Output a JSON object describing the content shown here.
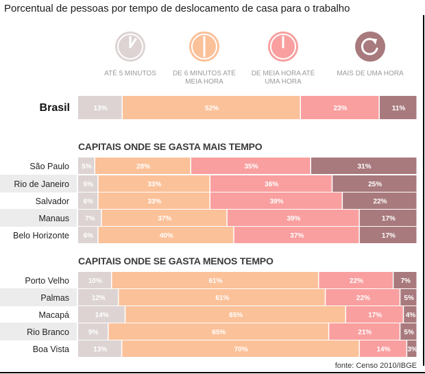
{
  "title": "Porcentual de pessoas por tempo de deslocamento de casa para o trabalho",
  "source": "fonte: Censo 2010/IBGE",
  "colors": {
    "ate5": "#ddd3d3",
    "ate30": "#fbc199",
    "ate60": "#f99f9f",
    "mais60": "#a87a7d",
    "row_alt": "#ececec",
    "bar_text": "#ffffff"
  },
  "legend": [
    {
      "label": "ATÉ 5 MINUTOS",
      "icon": "clock-5min-icon",
      "color": "#ddd3d3"
    },
    {
      "label": "DE 6 MINUTOS ATÉ MEIA HORA",
      "icon": "clock-half-hour-icon",
      "color": "#fbc199"
    },
    {
      "label": "DE MEIA HORA ATÉ UMA HORA",
      "icon": "clock-one-hour-icon",
      "color": "#f99f9f"
    },
    {
      "label": "MAIS DE UMA HORA",
      "icon": "clock-over-hour-icon",
      "color": "#a87a7d"
    }
  ],
  "chart_data": {
    "type": "bar",
    "orientation": "horizontal",
    "stacked": true,
    "series": [
      {
        "name": "ATÉ 5 MINUTOS"
      },
      {
        "name": "DE 6 MINUTOS ATÉ MEIA HORA"
      },
      {
        "name": "DE MEIA HORA ATÉ UMA HORA"
      },
      {
        "name": "MAIS DE UMA HORA"
      }
    ],
    "groups": [
      {
        "header": "",
        "rows": [
          {
            "label": "Brasil",
            "values": [
              13,
              52,
              23,
              11
            ]
          }
        ]
      },
      {
        "header": "CAPITAIS ONDE SE GASTA MAIS TEMPO",
        "rows": [
          {
            "label": "São Paulo",
            "values": [
              5,
              28,
              35,
              31
            ]
          },
          {
            "label": "Rio de Janeiro",
            "values": [
              6,
              33,
              36,
              25
            ]
          },
          {
            "label": "Salvador",
            "values": [
              6,
              33,
              39,
              22
            ]
          },
          {
            "label": "Manaus",
            "values": [
              7,
              37,
              39,
              17
            ]
          },
          {
            "label": "Belo Horizonte",
            "values": [
              6,
              40,
              37,
              17
            ]
          }
        ]
      },
      {
        "header": "CAPITAIS ONDE SE GASTA MENOS TEMPO",
        "rows": [
          {
            "label": "Porto Velho",
            "values": [
              10,
              61,
              22,
              7
            ]
          },
          {
            "label": "Palmas",
            "values": [
              12,
              61,
              22,
              5
            ]
          },
          {
            "label": "Macapá",
            "values": [
              14,
              65,
              17,
              4
            ]
          },
          {
            "label": "Rio Branco",
            "values": [
              9,
              65,
              21,
              5
            ]
          },
          {
            "label": "Boa Vista",
            "values": [
              13,
              70,
              14,
              3
            ]
          }
        ]
      }
    ],
    "unit": "%"
  }
}
